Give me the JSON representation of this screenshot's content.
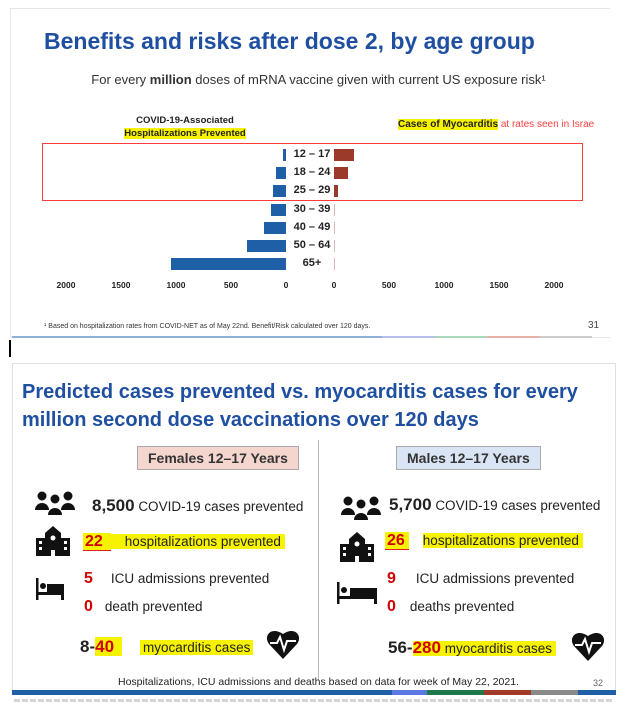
{
  "slide1": {
    "title": "Benefits and risks after dose 2, by age group",
    "subtitle_pre": "For every ",
    "subtitle_bold": "million",
    "subtitle_post": " doses of mRNA vaccine given with current US exposure risk¹",
    "footnote": "¹ Based on hospitalization rates from COVID-NET as of May 22nd. Benefit/Risk calculated over 120 days.",
    "page_number": "31"
  },
  "chart_data": {
    "type": "bar",
    "orientation": "horizontal-butterfly",
    "categories": [
      "12 – 17",
      "18 – 24",
      "25 – 29",
      "30 – 39",
      "40 – 49",
      "50 – 64",
      "65+"
    ],
    "series": [
      {
        "name": "COVID-19-Associated Hospitalizations Prevented",
        "side": "left",
        "color": "#1f5fa8",
        "values": [
          25,
          90,
          115,
          140,
          200,
          355,
          1045
        ]
      },
      {
        "name": "Cases of Myocarditis at rates seen in Israel",
        "side": "right",
        "color": "#9b3a2a",
        "values": [
          180,
          125,
          38,
          8,
          6,
          2,
          2
        ]
      }
    ],
    "left_header_line1": "COVID-19-Associated",
    "left_header_line2": "Hospitalizations Prevented",
    "right_header_highlight": "Cases of Myocarditis",
    "right_header_rest": " at rates seen in Israe",
    "left_ticks": [
      "2000",
      "1500",
      "1000",
      "500",
      "0"
    ],
    "right_ticks": [
      "0",
      "500",
      "1000",
      "1500",
      "2000"
    ],
    "xlim": [
      0,
      2000
    ],
    "highlighted_groups": [
      "12 – 17",
      "18 – 24",
      "25 – 29"
    ],
    "highlight_color": "#ff3b3b"
  },
  "slide2": {
    "title": "Predicted cases prevented vs. myocarditis cases for every million second dose vaccinations over 120 days",
    "female": {
      "label": "Females 12–17 Years",
      "cases_num": "8,500",
      "cases_text": "COVID-19 cases prevented",
      "hosp_num": "22",
      "hosp_text": "hospitalizations prevented",
      "icu_num": "5",
      "icu_text": "ICU admissions prevented",
      "death_num": "0",
      "death_text": "death prevented",
      "myo_low": "8-",
      "myo_high": "40",
      "myo_text": "myocarditis cases"
    },
    "male": {
      "label": "Males 12–17 Years",
      "cases_num": "5,700",
      "cases_text": "COVID-19 cases prevented",
      "hosp_num": "26",
      "hosp_text": "hospitalizations prevented",
      "icu_num": "9",
      "icu_text": "ICU admissions prevented",
      "death_num": "0",
      "death_text": "deaths prevented",
      "myo_low": "56-",
      "myo_high": "280",
      "myo_text": "myocarditis cases"
    },
    "footnote": "Hospitalizations, ICU admissions and deaths based on data for week of May 22, 2021.",
    "page_number": "32"
  },
  "colors": {
    "title_blue": "#1f4fa0",
    "female_bg": "#f4d6cf",
    "male_bg": "#d9e4f4",
    "highlight": "#f7f300",
    "red": "#d00000"
  }
}
